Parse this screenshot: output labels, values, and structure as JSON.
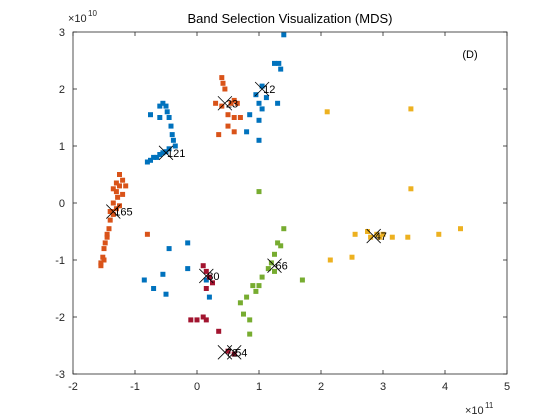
{
  "chart_data": {
    "type": "scatter",
    "title": "Band Selection Visualization (MDS)",
    "annotation": "(D)",
    "xlabel": "",
    "ylabel": "",
    "x_exponent": {
      "base": "×10",
      "power": "11"
    },
    "y_exponent": {
      "base": "×10",
      "power": "10"
    },
    "xlim": [
      -2,
      5
    ],
    "ylim": [
      -3,
      3
    ],
    "x_ticks": [
      -2,
      -1,
      0,
      1,
      2,
      3,
      4,
      5
    ],
    "y_ticks": [
      -3,
      -2,
      -1,
      0,
      1,
      2,
      3
    ],
    "x_tick_labels": [
      "-2",
      "-1",
      "0",
      "1",
      "2",
      "3",
      "4",
      "5"
    ],
    "y_tick_labels": [
      "-3",
      "-2",
      "-1",
      "0",
      "1",
      "2",
      "3"
    ],
    "grid": false,
    "series": [
      {
        "color": "#0072BD",
        "points": [
          [
            1.4,
            2.95
          ],
          [
            1.25,
            2.45
          ],
          [
            1.32,
            2.45
          ],
          [
            1.35,
            2.35
          ],
          [
            1.05,
            2.05
          ],
          [
            1.12,
            1.85
          ],
          [
            1.3,
            1.75
          ],
          [
            1.05,
            1.65
          ],
          [
            1.0,
            1.75
          ],
          [
            0.95,
            1.9
          ],
          [
            0.85,
            1.55
          ],
          [
            1.0,
            1.45
          ],
          [
            0.8,
            1.25
          ],
          [
            1.0,
            1.1
          ],
          [
            -0.6,
            1.7
          ],
          [
            -0.55,
            1.75
          ],
          [
            -0.5,
            1.7
          ],
          [
            -0.48,
            1.6
          ],
          [
            -0.45,
            1.5
          ],
          [
            -0.42,
            1.35
          ],
          [
            -0.4,
            1.2
          ],
          [
            -0.38,
            1.1
          ],
          [
            -0.35,
            1.0
          ],
          [
            -0.6,
            1.5
          ],
          [
            -0.45,
            0.95
          ],
          [
            -0.5,
            0.9
          ],
          [
            -0.55,
            0.88
          ],
          [
            -0.6,
            0.85
          ],
          [
            -0.65,
            0.8
          ],
          [
            -0.75,
            0.75
          ],
          [
            -0.8,
            0.72
          ],
          [
            -0.7,
            0.8
          ],
          [
            -0.75,
            1.55
          ],
          [
            -0.15,
            -0.7
          ],
          [
            -0.55,
            -1.25
          ],
          [
            -0.7,
            -1.5
          ],
          [
            -0.5,
            -1.6
          ],
          [
            -0.15,
            -1.15
          ],
          [
            0.15,
            -1.35
          ],
          [
            0.2,
            -1.65
          ],
          [
            -0.45,
            -0.8
          ],
          [
            -0.85,
            -1.35
          ]
        ]
      },
      {
        "color": "#D95319",
        "points": [
          [
            0.4,
            2.2
          ],
          [
            0.42,
            2.1
          ],
          [
            0.45,
            2.0
          ],
          [
            0.3,
            1.75
          ],
          [
            0.4,
            1.7
          ],
          [
            0.55,
            1.75
          ],
          [
            0.6,
            1.8
          ],
          [
            0.65,
            1.75
          ],
          [
            0.5,
            1.55
          ],
          [
            0.6,
            1.5
          ],
          [
            0.7,
            1.5
          ],
          [
            0.5,
            1.35
          ],
          [
            0.6,
            1.25
          ],
          [
            0.35,
            1.2
          ],
          [
            -1.25,
            0.5
          ],
          [
            -1.2,
            0.4
          ],
          [
            -1.25,
            0.3
          ],
          [
            -1.3,
            0.2
          ],
          [
            -1.28,
            0.1
          ],
          [
            -1.35,
            0.0
          ],
          [
            -1.3,
            -0.1
          ],
          [
            -1.35,
            -0.2
          ],
          [
            -1.4,
            -0.3
          ],
          [
            -1.42,
            -0.45
          ],
          [
            -1.45,
            -0.55
          ],
          [
            -1.48,
            -0.7
          ],
          [
            -1.5,
            -0.8
          ],
          [
            -1.52,
            -0.95
          ],
          [
            -1.55,
            -1.1
          ],
          [
            -1.2,
            0.15
          ],
          [
            -1.15,
            0.3
          ],
          [
            -1.3,
            0.35
          ],
          [
            -1.38,
            -0.15
          ],
          [
            -1.25,
            -0.05
          ],
          [
            -1.45,
            -0.6
          ],
          [
            -0.8,
            -0.55
          ],
          [
            -1.4,
            -0.15
          ],
          [
            -1.5,
            -1.0
          ],
          [
            -1.35,
            0.25
          ],
          [
            -1.55,
            -1.05
          ]
        ]
      },
      {
        "color": "#EDB120",
        "points": [
          [
            2.1,
            1.6
          ],
          [
            3.45,
            1.65
          ],
          [
            3.45,
            0.25
          ],
          [
            2.9,
            -0.55
          ],
          [
            2.95,
            -0.6
          ],
          [
            3.0,
            -0.55
          ],
          [
            2.8,
            -0.6
          ],
          [
            2.75,
            -0.5
          ],
          [
            2.55,
            -0.55
          ],
          [
            2.5,
            -0.95
          ],
          [
            2.15,
            -1.0
          ],
          [
            3.15,
            -0.6
          ],
          [
            3.4,
            -0.6
          ],
          [
            3.9,
            -0.55
          ],
          [
            4.25,
            -0.45
          ]
        ]
      },
      {
        "color": "#7E2F8E",
        "points": []
      },
      {
        "color": "#77AC30",
        "points": [
          [
            1.0,
            0.2
          ],
          [
            1.4,
            -0.45
          ],
          [
            1.3,
            -0.7
          ],
          [
            1.35,
            -0.75
          ],
          [
            1.25,
            -0.9
          ],
          [
            1.2,
            -1.05
          ],
          [
            1.15,
            -1.15
          ],
          [
            1.05,
            -1.3
          ],
          [
            1.0,
            -1.45
          ],
          [
            0.95,
            -1.55
          ],
          [
            0.8,
            -1.65
          ],
          [
            0.7,
            -1.75
          ],
          [
            0.75,
            -1.95
          ],
          [
            0.85,
            -2.05
          ],
          [
            0.85,
            -2.3
          ],
          [
            1.7,
            -1.35
          ],
          [
            1.25,
            -1.2
          ],
          [
            0.9,
            -1.45
          ]
        ]
      },
      {
        "color": "#A2142F",
        "points": [
          [
            0.1,
            -1.1
          ],
          [
            0.15,
            -1.2
          ],
          [
            0.2,
            -1.3
          ],
          [
            0.25,
            -1.4
          ],
          [
            0.15,
            -1.5
          ],
          [
            -0.1,
            -2.05
          ],
          [
            0.0,
            -2.05
          ],
          [
            0.1,
            -2.0
          ],
          [
            0.15,
            -2.05
          ],
          [
            0.35,
            -2.25
          ],
          [
            0.5,
            -2.6
          ],
          [
            0.6,
            -2.65
          ]
        ]
      }
    ],
    "selected_bands": [
      {
        "label": "12",
        "x": 1.05,
        "y": 2.0
      },
      {
        "label": "23",
        "x": 0.45,
        "y": 1.75
      },
      {
        "label": "121",
        "x": -0.5,
        "y": 0.88
      },
      {
        "label": "165",
        "x": -1.35,
        "y": -0.15
      },
      {
        "label": "47",
        "x": 2.85,
        "y": -0.58
      },
      {
        "label": "66",
        "x": 1.25,
        "y": -1.1
      },
      {
        "label": "80",
        "x": 0.15,
        "y": -1.28
      },
      {
        "label": "72",
        "x": 0.45,
        "y": -2.62
      },
      {
        "label": "54",
        "x": 0.6,
        "y": -2.62
      }
    ]
  }
}
